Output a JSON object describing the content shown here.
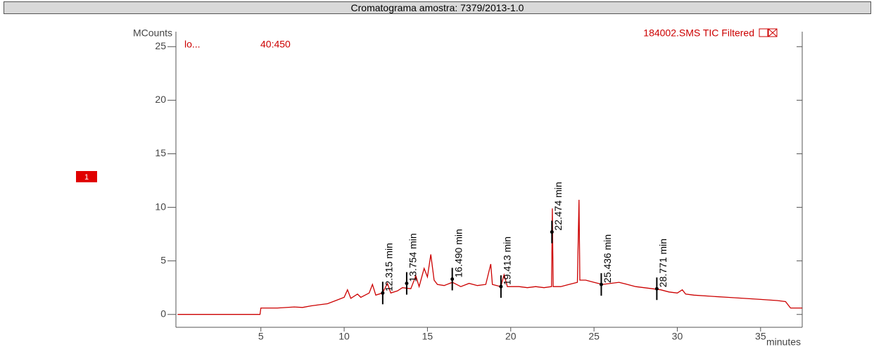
{
  "chart_data": {
    "type": "line",
    "title": "Cromatograma amostra: 7379/2013-1.0",
    "y_label": "MCounts",
    "x_label": "minutes",
    "ion_label": "lo...",
    "mass_range": "40:450",
    "marker": "1",
    "xlim": [
      -0.1,
      37.5
    ],
    "ylim": [
      -1.2,
      26.4
    ],
    "xticks": [
      5,
      10,
      15,
      20,
      25,
      30,
      35
    ],
    "yticks": [
      0,
      5,
      10,
      15,
      20,
      25
    ],
    "series": [
      {
        "name": "184002.SMS TIC Filtered",
        "color": "#cc0000",
        "x": [
          0,
          4.95,
          5.0,
          6,
          7,
          7.5,
          8,
          8.5,
          9,
          9.5,
          10,
          10.2,
          10.4,
          10.8,
          11,
          11.5,
          11.7,
          11.9,
          12.3,
          12.6,
          12.8,
          13.2,
          13.5,
          14,
          14.3,
          14.5,
          14.8,
          15.0,
          15.2,
          15.4,
          15.6,
          16,
          16.5,
          17,
          17.5,
          18,
          18.5,
          18.8,
          18.9,
          19.4,
          19.6,
          19.8,
          20.5,
          21,
          21.5,
          22,
          22.45,
          22.5,
          22.55,
          23,
          23.5,
          24.0,
          24.1,
          24.15,
          24.5,
          25,
          25.5,
          26,
          26.5,
          27,
          27.5,
          28,
          28.5,
          29,
          29.5,
          30,
          30.3,
          30.5,
          31,
          32,
          33,
          34,
          35,
          36,
          36.5,
          36.8,
          37.5
        ],
        "values": [
          0,
          0,
          0.6,
          0.6,
          0.7,
          0.65,
          0.8,
          0.9,
          1.0,
          1.3,
          1.6,
          2.3,
          1.5,
          1.9,
          1.6,
          2.0,
          2.8,
          1.8,
          2.0,
          2.9,
          2.0,
          2.2,
          2.5,
          2.4,
          3.6,
          2.6,
          4.3,
          3.5,
          5.6,
          3.2,
          2.8,
          2.7,
          3.0,
          2.6,
          2.9,
          2.7,
          2.8,
          4.7,
          2.8,
          2.6,
          3.7,
          2.6,
          2.6,
          2.5,
          2.6,
          2.5,
          2.6,
          9.9,
          2.6,
          2.6,
          2.8,
          3.0,
          10.7,
          3.2,
          3.2,
          3.0,
          2.8,
          2.9,
          3.0,
          2.8,
          2.6,
          2.5,
          2.4,
          2.3,
          2.1,
          2.0,
          2.3,
          1.9,
          1.8,
          1.7,
          1.6,
          1.5,
          1.4,
          1.3,
          1.2,
          0.6,
          0.6
        ]
      }
    ],
    "annotations": [
      {
        "x": 12.315,
        "y": 2.0,
        "label": "12.315 min"
      },
      {
        "x": 13.754,
        "y": 2.9,
        "label": "13.754 min"
      },
      {
        "x": 16.49,
        "y": 3.3,
        "label": "16.490 min"
      },
      {
        "x": 19.413,
        "y": 2.6,
        "label": "19.413 min"
      },
      {
        "x": 22.474,
        "y": 7.7,
        "label": "22.474 min"
      },
      {
        "x": 25.436,
        "y": 2.8,
        "label": "25.436 min"
      },
      {
        "x": 28.771,
        "y": 2.4,
        "label": "28.771 min"
      }
    ]
  }
}
